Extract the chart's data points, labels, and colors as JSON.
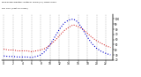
{
  "title": "Milwaukee Weather Outdoor Temp (vs) THSW Index per Hour (Last 24 Hours)",
  "hours": [
    0,
    1,
    2,
    3,
    4,
    5,
    6,
    7,
    8,
    9,
    10,
    11,
    12,
    13,
    14,
    15,
    16,
    17,
    18,
    19,
    20,
    21,
    22,
    23
  ],
  "temp": [
    33,
    32,
    32,
    31,
    31,
    31,
    30,
    31,
    32,
    34,
    38,
    43,
    49,
    55,
    59,
    62,
    60,
    57,
    52,
    47,
    43,
    40,
    37,
    35
  ],
  "thsw": [
    28,
    27,
    27,
    26,
    26,
    26,
    25,
    27,
    30,
    38,
    50,
    65,
    80,
    92,
    98,
    100,
    94,
    80,
    65,
    52,
    43,
    37,
    33,
    30
  ],
  "temp_color": "#cc0000",
  "thsw_color": "#0000cc",
  "bg_color": "#ffffff",
  "grid_color": "#888888",
  "ylim_temp": [
    20,
    75
  ],
  "ylim_thsw": [
    20,
    110
  ],
  "right_ticks": [
    20,
    30,
    40,
    50,
    60,
    70,
    80,
    90,
    100
  ],
  "right_labels": [
    "20",
    "30",
    "40",
    "50",
    "60",
    "70",
    "80",
    "90",
    "100"
  ],
  "xlim": [
    -0.5,
    23.5
  ],
  "xlabel_ticks": [
    0,
    2,
    4,
    6,
    8,
    10,
    12,
    14,
    16,
    18,
    20,
    22
  ],
  "xlabel_labels": [
    "0",
    "2",
    "4",
    "6",
    "8",
    "10",
    "12",
    "14",
    "16",
    "18",
    "20",
    "22"
  ]
}
